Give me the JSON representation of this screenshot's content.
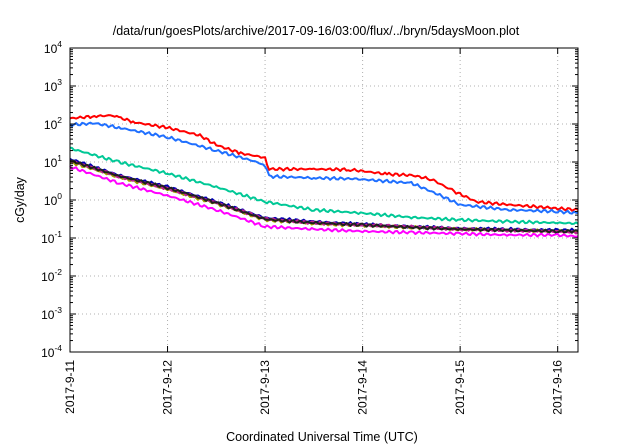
{
  "chart_data": {
    "type": "line",
    "title": "/data/run/goesPlots/archive/2017-09-16/03:00/flux/../bryn/5daysMoon.plot",
    "xlabel": "Coordinated Universal Time (UTC)",
    "ylabel": "cGy/day",
    "y_scale": "log",
    "ylim": [
      0.0001,
      10000
    ],
    "y_ticks": [
      {
        "base": "10",
        "exp": "-4",
        "value": 0.0001
      },
      {
        "base": "10",
        "exp": "-3",
        "value": 0.001
      },
      {
        "base": "10",
        "exp": "-2",
        "value": 0.01
      },
      {
        "base": "10",
        "exp": "-1",
        "value": 0.1
      },
      {
        "base": "10",
        "exp": "0",
        "value": 1
      },
      {
        "base": "10",
        "exp": "1",
        "value": 10
      },
      {
        "base": "10",
        "exp": "2",
        "value": 100
      },
      {
        "base": "10",
        "exp": "3",
        "value": 1000
      },
      {
        "base": "10",
        "exp": "4",
        "value": 10000
      }
    ],
    "xlim": [
      "2017-09-11 00:00",
      "2017-09-16 05:00"
    ],
    "x_ticks": [
      "2017-9-11",
      "2017-9-12",
      "2017-9-13",
      "2017-9-14",
      "2017-9-15",
      "2017-9-16"
    ],
    "grid": true,
    "legend": "none",
    "series": [
      {
        "color": "#ff0000",
        "x": [
          "2017-09-11 00:00",
          "2017-09-11 06:00",
          "2017-09-11 11:00",
          "2017-09-11 12:00",
          "2017-09-11 16:00",
          "2017-09-12 00:00",
          "2017-09-12 08:00",
          "2017-09-12 12:00",
          "2017-09-12 18:00",
          "2017-09-13 00:00",
          "2017-09-13 01:00",
          "2017-09-13 12:00",
          "2017-09-13 21:00",
          "2017-09-14 06:00",
          "2017-09-14 12:00",
          "2017-09-14 17:00",
          "2017-09-14 22:00",
          "2017-09-15 04:00",
          "2017-09-15 12:00",
          "2017-09-15 20:00",
          "2017-09-16 00:00",
          "2017-09-16 05:00"
        ],
        "values": [
          140,
          160,
          170,
          150,
          110,
          80,
          50,
          28,
          17,
          13,
          6.5,
          6.5,
          6.3,
          4.8,
          4.5,
          3.5,
          1.8,
          0.9,
          0.75,
          0.65,
          0.6,
          0.55
        ]
      },
      {
        "color": "#1f6fff",
        "x": [
          "2017-09-11 00:00",
          "2017-09-11 06:00",
          "2017-09-11 12:00",
          "2017-09-12 00:00",
          "2017-09-12 12:00",
          "2017-09-12 22:00",
          "2017-09-13 00:00",
          "2017-09-13 01:00",
          "2017-09-13 12:00",
          "2017-09-13 22:00",
          "2017-09-14 12:00",
          "2017-09-14 18:00",
          "2017-09-15 00:00",
          "2017-09-15 12:00",
          "2017-09-16 00:00",
          "2017-09-16 05:00"
        ],
        "values": [
          95,
          105,
          80,
          45,
          20,
          10,
          8,
          4.2,
          3.8,
          3.6,
          2.8,
          1.5,
          0.75,
          0.55,
          0.5,
          0.45
        ]
      },
      {
        "color": "#00c896",
        "x": [
          "2017-09-11 00:00",
          "2017-09-11 12:00",
          "2017-09-12 00:00",
          "2017-09-12 12:00",
          "2017-09-13 00:00",
          "2017-09-13 12:00",
          "2017-09-14 00:00",
          "2017-09-14 12:00",
          "2017-09-15 00:00",
          "2017-09-15 12:00",
          "2017-09-16 00:00",
          "2017-09-16 05:00"
        ],
        "values": [
          23,
          10,
          5,
          2.2,
          0.9,
          0.55,
          0.45,
          0.35,
          0.3,
          0.27,
          0.25,
          0.24
        ]
      },
      {
        "color": "#0000b0",
        "x": [
          "2017-09-11 00:00",
          "2017-09-11 12:00",
          "2017-09-12 00:00",
          "2017-09-12 12:00",
          "2017-09-13 00:00",
          "2017-09-13 12:00",
          "2017-09-14 00:00",
          "2017-09-14 12:00",
          "2017-09-15 00:00",
          "2017-09-15 12:00",
          "2017-09-16 00:00",
          "2017-09-16 05:00"
        ],
        "values": [
          12,
          4.5,
          2.2,
          0.9,
          0.34,
          0.27,
          0.23,
          0.2,
          0.18,
          0.17,
          0.16,
          0.16
        ]
      },
      {
        "color": "#a0a000",
        "x": [
          "2017-09-11 00:00",
          "2017-09-11 12:00",
          "2017-09-12 00:00",
          "2017-09-12 12:00",
          "2017-09-13 00:00",
          "2017-09-13 12:00",
          "2017-09-14 00:00",
          "2017-09-14 12:00",
          "2017-09-15 00:00",
          "2017-09-15 12:00",
          "2017-09-16 00:00",
          "2017-09-16 05:00"
        ],
        "values": [
          10,
          4,
          1.9,
          0.8,
          0.3,
          0.24,
          0.21,
          0.19,
          0.17,
          0.16,
          0.15,
          0.15
        ]
      },
      {
        "color": "#c02090",
        "x": [
          "2017-09-11 00:00",
          "2017-09-11 12:00",
          "2017-09-12 00:00",
          "2017-09-12 12:00",
          "2017-09-13 00:00",
          "2017-09-13 12:00",
          "2017-09-14 00:00",
          "2017-09-14 12:00",
          "2017-09-15 00:00",
          "2017-09-15 12:00",
          "2017-09-16 00:00",
          "2017-09-16 05:00"
        ],
        "values": [
          11,
          4.2,
          2,
          0.85,
          0.32,
          0.25,
          0.22,
          0.2,
          0.17,
          0.16,
          0.15,
          0.14
        ]
      },
      {
        "color": "#202020",
        "x": [
          "2017-09-11 00:00",
          "2017-09-11 12:00",
          "2017-09-12 00:00",
          "2017-09-12 12:00",
          "2017-09-13 00:00",
          "2017-09-13 12:00",
          "2017-09-14 00:00",
          "2017-09-14 12:00",
          "2017-09-15 00:00",
          "2017-09-15 12:00",
          "2017-09-16 00:00",
          "2017-09-16 05:00"
        ],
        "values": [
          11,
          4.3,
          2.1,
          0.85,
          0.31,
          0.25,
          0.22,
          0.19,
          0.17,
          0.16,
          0.15,
          0.15
        ]
      },
      {
        "color": "#ff00ff",
        "x": [
          "2017-09-11 00:00",
          "2017-09-11 12:00",
          "2017-09-12 00:00",
          "2017-09-12 12:00",
          "2017-09-13 00:00",
          "2017-09-13 12:00",
          "2017-09-14 00:00",
          "2017-09-14 12:00",
          "2017-09-15 00:00",
          "2017-09-15 12:00",
          "2017-09-16 00:00",
          "2017-09-16 05:00"
        ],
        "values": [
          7.5,
          2.8,
          1.3,
          0.55,
          0.2,
          0.17,
          0.15,
          0.14,
          0.13,
          0.12,
          0.12,
          0.11
        ]
      }
    ]
  }
}
